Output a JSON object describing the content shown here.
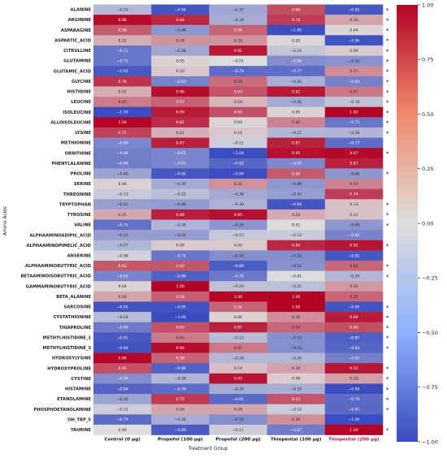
{
  "chart_data": {
    "type": "heatmap",
    "title": "",
    "xlabel": "Treatment Group",
    "ylabel": "Amino Acids",
    "columns": [
      "Control (0 µg)",
      "Propofol (100 µg)",
      "Propofol (200 µg)",
      "Thiopental (100 µg)",
      "Thiopental (200 µg)"
    ],
    "column_colors": [
      "#111111",
      "#111111",
      "#111111",
      "#111111",
      "#b3124a"
    ],
    "rows": [
      "ALANINE",
      "ARGININE",
      "ASPARAGINE",
      "ASPARTIC_ACID",
      "CITRULLINE",
      "GLUTAMINE",
      "GLUTAMIC_ACID",
      "GLYCINE",
      "HISTIDINE",
      "LEUCINE",
      "ISOLEUCINE",
      "ALLOISOLEUCINE",
      "LYSINE",
      "METHIONINE",
      "ORNITHINE",
      "PHENYLALANINE",
      "PROLINE",
      "SERINE",
      "THREONINE",
      "TRYPTOPHAN",
      "TYROSINE",
      "VALINE",
      "ALPHAAMINOADIPIC_ACID",
      "ALPHAAMINOPIMELIC_ACID",
      "ANSERINE",
      "ALPHAAMINOBUTYRIC_ACID",
      "BETAAMINOISOBUTYRIC_ACID",
      "GAMMAMINOBUTYRIC_ACID",
      "BETA_ALANINE",
      "SARCOSINE",
      "CYSTATHIONINE",
      "THIAPROLINE",
      "METHYLHISTIDINE_1",
      "METHYLHISTIDINE_3",
      "HYDROXYLYSINE",
      "HYDROXYPROLINE",
      "CYSTINE",
      "HISTAMINE",
      "ETANOLAMINE",
      "PHOSPHOETANOLAMINE",
      "OH_TRP_5",
      "TAURINE"
    ],
    "values": [
      [
        -0.25,
        -0.94,
        -0.37,
        0.66,
        -0.92
      ],
      [
        0.96,
        0.84,
        -0.34,
        0.74,
        0.26
      ],
      [
        0.59,
        -0.48,
        0.56,
        -1.0,
        0.04
      ],
      [
        0.22,
        0.34,
        0.35,
        0.03,
        -0.96
      ],
      [
        -0.71,
        -0.38,
        0.91,
        -0.16,
        0.09
      ],
      [
        -0.71,
        0.05,
        -0.01,
        -0.56,
        -0.52
      ],
      [
        -0.92,
        0.1,
        -0.79,
        -0.77,
        0.37
      ],
      [
        0.78,
        -0.63,
        0.52,
        -0.32,
        -0.64
      ],
      [
        0.22,
        0.96,
        0.63,
        0.91,
        0.47
      ],
      [
        0.45,
        0.57,
        0.19,
        -0.35,
        -0.18
      ],
      [
        -1.0,
        0.9,
        0.65,
        0.05,
        1.0
      ],
      [
        1.0,
        0.81,
        0.04,
        0.42,
        -0.72
      ],
      [
        0.71,
        0.21,
        0.1,
        -0.27,
        -0.28
      ],
      [
        -0.6,
        0.87,
        -0.11,
        0.87,
        -0.77
      ],
      [
        -0.66,
        -0.61,
        -1.0,
        0.95,
        0.97
      ],
      [
        -0.66,
        -0.61,
        -0.82,
        -0.59,
        0.87
      ],
      [
        -0.4,
        -0.92,
        -0.99,
        0.6,
        -0.48
      ],
      [
        0.06,
        -0.35,
        0.35,
        -0.49,
        0.41
      ],
      [
        -0.13,
        -0.22,
        -0.36,
        -0.43,
        0.74
      ],
      [
        -0.43,
        -0.46,
        -0.3,
        -0.94,
        0.13
      ],
      [
        0.25,
        0.88,
        0.95,
        0.23,
        0.13
      ],
      [
        -0.75,
        -0.28,
        -0.5,
        0.01,
        -0.49
      ],
      [
        -0.43,
        -0.44,
        -0.15,
        -0.13,
        -0.62
      ],
      [
        -0.27,
        0.09,
        0.09,
        0.84,
        0.92
      ],
      [
        -0.08,
        -0.72,
        -0.55,
        -0.55,
        -0.92
      ],
      [
        0.61,
        0.62,
        -0.89,
        -0.52,
        0.55
      ],
      [
        -0.62,
        -0.86,
        -0.7,
        -0.01,
        -0.26
      ],
      [
        0.04,
        1.0,
        -0.2,
        -0.21,
        0.32
      ],
      [
        0.26,
        0.58,
        1.0,
        1.0,
        0.55
      ],
      [
        -0.95,
        -0.95,
        0.56,
        1.0,
        -0.95
      ],
      [
        -0.24,
        -1.0,
        0.06,
        0.36,
        0.89
      ],
      [
        -0.68,
        0.65,
        0.87,
        0.54,
        0.66
      ],
      [
        -0.91,
        0.45,
        -0.23,
        -0.53,
        -0.87
      ],
      [
        -0.96,
        0.96,
        0.47,
        -0.54,
        -0.83
      ],
      [
        0.99,
        0.56,
        -0.26,
        -0.26,
        -0.65
      ],
      [
        0.65,
        -0.86,
        0.14,
        0.28,
        0.92
      ],
      [
        -0.56,
        -0.28,
        0.93,
        0.08,
        0.29
      ],
      [
        -0.84,
        -0.78,
        -0.35,
        -0.33,
        -0.99
      ],
      [
        -0.4,
        0.75,
        -0.81,
        0.63,
        -0.79
      ],
      [
        -0.12,
        0.26,
        0.26,
        -0.12,
        -0.81
      ],
      [
        -0.79,
        -0.34,
        -0.55,
        0.36,
        -1.0
      ],
      [
        -0.0,
        -0.89,
        -0.11,
        -0.67,
        1.0
      ]
    ],
    "value_range": [
      -1.0,
      1.0
    ],
    "colormap": [
      "#3b4cc0",
      "#dddddd",
      "#b40426"
    ],
    "colorbar_ticks": [
      "1.00",
      "0.75",
      "0.50",
      "0.25",
      "0.00",
      "−0.25",
      "−0.50",
      "−0.75",
      "−1.00"
    ],
    "colorbar_tick_values": [
      1.0,
      0.75,
      0.5,
      0.25,
      0.0,
      -0.25,
      -0.5,
      -0.75,
      -1.0
    ],
    "significance_mark": "*",
    "significant_rows": [
      "ALANINE",
      "ARGININE",
      "ASPARAGINE",
      "ASPARTIC_ACID",
      "CITRULLINE",
      "GLUTAMINE",
      "GLUTAMIC_ACID",
      "GLYCINE",
      "HISTIDINE",
      "LEUCINE",
      "ISOLEUCINE",
      "ALLOISOLEUCINE",
      "LYSINE",
      "ORNITHINE",
      "PROLINE",
      "TRYPTOPHAN",
      "TYROSINE",
      "VALINE",
      "ALPHAAMINOPIMELIC_ACID",
      "ALPHAAMINOBUTYRIC_ACID",
      "BETAAMINOISOBUTYRIC_ACID",
      "SARCOSINE",
      "CYSTATHIONINE",
      "THIAPROLINE",
      "METHYLHISTIDINE_1",
      "METHYLHISTIDINE_3",
      "HYDROXYPROLINE",
      "CYSTINE",
      "HISTAMINE",
      "ETANOLAMINE",
      "PHOSPHOETANOLAMINE",
      "TAURINE"
    ]
  }
}
